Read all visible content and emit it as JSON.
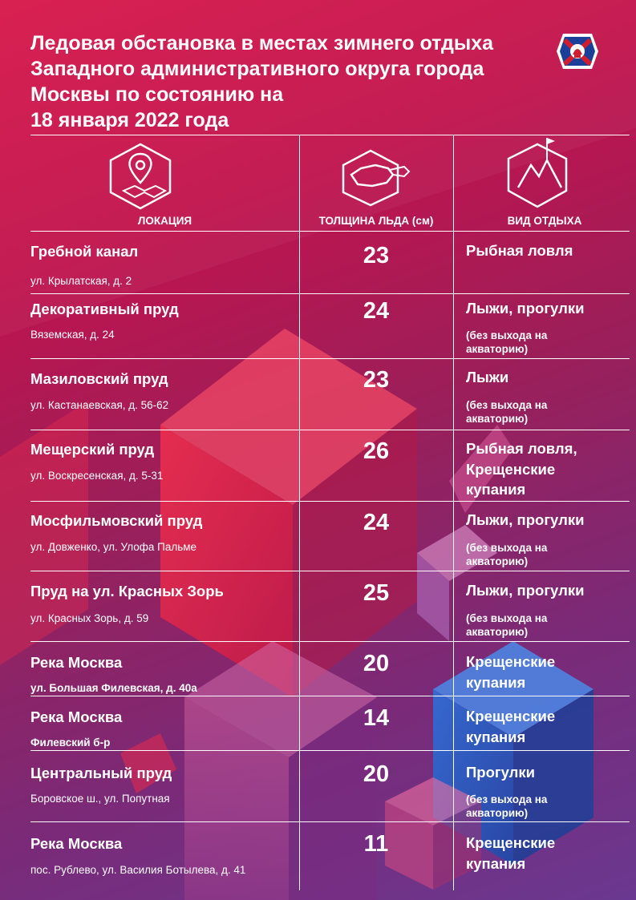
{
  "title_lines": [
    "Ледовая обстановка в местах зимнего  отдыха",
    "Западного административного округа города",
    "Москвы по состоянию на",
    "18 января 2022 года"
  ],
  "columns": {
    "location": "ЛОКАЦИЯ",
    "thickness": "ТОЛЩИНА  ЛЬДА  (см)",
    "activity": "ВИД ОТДЫХА"
  },
  "icons": {
    "location": "map-pin-hexagon-icon",
    "thickness": "ice-hole-hexagon-icon",
    "activity": "mountain-flag-hexagon-icon",
    "logo": "emergency-service-emblem-icon"
  },
  "rows": [
    {
      "name": "Гребной канал",
      "address": "ул. Крылатская, д. 2",
      "thickness": "23",
      "activity": [
        "Рыбная ловля"
      ],
      "note": []
    },
    {
      "name": "Декоративный пруд",
      "address": "Вяземская, д. 24",
      "thickness": "24",
      "activity": [
        "Лыжи, прогулки"
      ],
      "note": [
        "(без выхода на",
        "акваторию)"
      ]
    },
    {
      "name": "Мазиловский пруд",
      "address": "ул. Кастанаевская, д. 56-62",
      "thickness": "23",
      "activity": [
        "Лыжи"
      ],
      "note": [
        "(без выхода на",
        "акваторию)"
      ]
    },
    {
      "name": "Мещерский пруд",
      "address": "ул. Воскресенская, д. 5-31",
      "thickness": "26",
      "activity": [
        "Рыбная ловля,",
        "Крещенские",
        "купания"
      ],
      "note": []
    },
    {
      "name": "Мосфильмовский пруд",
      "address": "ул. Довженко, ул. Улофа Пальме",
      "thickness": "24",
      "activity": [
        "Лыжи, прогулки"
      ],
      "note": [
        "(без выхода на",
        "акваторию)"
      ]
    },
    {
      "name": "Пруд  на ул. Красных Зорь",
      "address": "ул. Красных Зорь, д. 59",
      "thickness": "25",
      "activity": [
        "Лыжи, прогулки"
      ],
      "note": [
        "(без выхода на",
        "акваторию)"
      ]
    },
    {
      "name": "Река Москва",
      "address": "ул. Большая Филевская, д. 40а",
      "thickness": "20",
      "activity": [
        "Крещенские",
        "купания"
      ],
      "note": []
    },
    {
      "name": "Река Москва",
      "address": "Филевский б-р",
      "thickness": "14",
      "activity": [
        "Крещенские",
        "купания"
      ],
      "note": []
    },
    {
      "name": "Центральный пруд",
      "address": "Боровское ш., ул. Попутная",
      "thickness": "20",
      "activity": [
        "Прогулки"
      ],
      "note": [
        "(без выхода на",
        "акваторию)"
      ]
    },
    {
      "name": "Река Москва",
      "address": "пос. Рублево, ул. Василия Ботылева, д. 41",
      "thickness": "11",
      "activity": [
        "Крещенские",
        "купания"
      ],
      "note": []
    }
  ]
}
